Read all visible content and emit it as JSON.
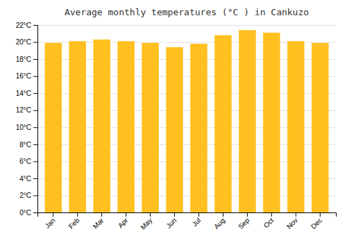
{
  "chart_data": {
    "type": "bar",
    "title": "Average monthly temperatures (°C ) in Cankuzo",
    "categories": [
      "Jan",
      "Feb",
      "Mar",
      "Apr",
      "May",
      "Jun",
      "Jul",
      "Aug",
      "Sep",
      "Oct",
      "Nov",
      "Dec"
    ],
    "values": [
      19.9,
      20.1,
      20.3,
      20.1,
      19.9,
      19.4,
      19.8,
      20.8,
      21.4,
      21.1,
      20.1,
      19.9
    ],
    "color": "#FFC020",
    "ylim": [
      0,
      22
    ],
    "yticks": [
      {
        "value": 0,
        "label": "0°C"
      },
      {
        "value": 2,
        "label": "2°C"
      },
      {
        "value": 4,
        "label": "4°C"
      },
      {
        "value": 6,
        "label": "6°C"
      },
      {
        "value": 8,
        "label": "8°C"
      },
      {
        "value": 10,
        "label": "10°C"
      },
      {
        "value": 12,
        "label": "12°C"
      },
      {
        "value": 14,
        "label": "14°C"
      },
      {
        "value": 16,
        "label": "16°C"
      },
      {
        "value": 18,
        "label": "18°C"
      },
      {
        "value": 20,
        "label": "20°C"
      },
      {
        "value": 22,
        "label": "22°C"
      }
    ],
    "grid": true
  }
}
